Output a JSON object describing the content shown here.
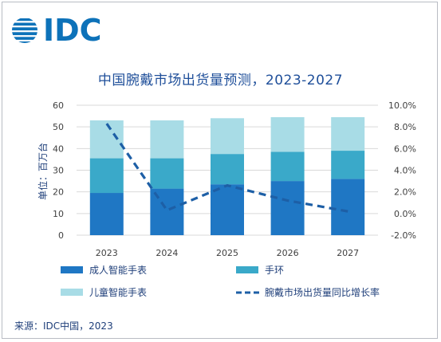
{
  "logo": {
    "text": "IDC"
  },
  "source": "来源：IDC中国，2023",
  "chart_data": {
    "type": "bar",
    "title": "中国腕戴市场出货量预测，2023-2027",
    "ylabel": "单位：百万台",
    "categories": [
      "2023",
      "2024",
      "2025",
      "2026",
      "2027"
    ],
    "stacked": true,
    "ylim": [
      0,
      60
    ],
    "y_ticks": [
      "0",
      "10",
      "20",
      "30",
      "40",
      "50",
      "60"
    ],
    "y2lim": [
      -2.0,
      10.0
    ],
    "y2_ticks": [
      "-2.0%",
      "0.0%",
      "2.0%",
      "4.0%",
      "6.0%",
      "8.0%",
      "10.0%"
    ],
    "series": [
      {
        "name": "成人智能手表",
        "type": "bar",
        "color": "#1f77c4",
        "values": [
          19.5,
          21.5,
          23.5,
          25.0,
          26.0
        ]
      },
      {
        "name": "手环",
        "type": "bar",
        "color": "#3aa9c9",
        "values": [
          16.0,
          14.0,
          14.0,
          13.5,
          13.0
        ]
      },
      {
        "name": "儿童智能手表",
        "type": "bar",
        "color": "#a8dce6",
        "values": [
          17.5,
          17.5,
          16.5,
          16.0,
          15.5
        ]
      },
      {
        "name": "腕戴市场出货量同比增长率",
        "type": "line",
        "axis": "right",
        "style": "dashed",
        "color": "#1d5fa6",
        "values": [
          8.3,
          0.3,
          2.6,
          1.2,
          0.2
        ]
      }
    ],
    "legend": "bottom"
  }
}
